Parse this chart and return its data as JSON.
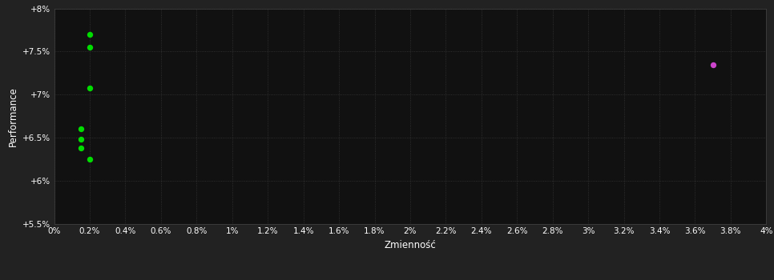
{
  "background_color": "#222222",
  "plot_bg_color": "#111111",
  "text_color": "#ffffff",
  "xlabel": "Zmienność",
  "ylabel": "Performance",
  "xlim": [
    0.0,
    0.04
  ],
  "ylim": [
    0.055,
    0.08
  ],
  "xticks": [
    0.0,
    0.002,
    0.004,
    0.006,
    0.008,
    0.01,
    0.012,
    0.014,
    0.016,
    0.018,
    0.02,
    0.022,
    0.024,
    0.026,
    0.028,
    0.03,
    0.032,
    0.034,
    0.036,
    0.038,
    0.04
  ],
  "yticks": [
    0.055,
    0.06,
    0.065,
    0.07,
    0.075,
    0.08
  ],
  "ytick_labels": [
    "+5.5%",
    "+6%",
    "+6.5%",
    "+7%",
    "+7.5%",
    "+8%"
  ],
  "xtick_labels": [
    "0%",
    "0.2%",
    "0.4%",
    "0.6%",
    "0.8%",
    "1%",
    "1.2%",
    "1.4%",
    "1.6%",
    "1.8%",
    "2%",
    "2.2%",
    "2.4%",
    "2.6%",
    "2.8%",
    "3%",
    "3.2%",
    "3.4%",
    "3.6%",
    "3.8%",
    "4%"
  ],
  "green_points_x": [
    0.002,
    0.002,
    0.002,
    0.0015,
    0.0015,
    0.0015,
    0.002
  ],
  "green_points_y": [
    0.077,
    0.0755,
    0.0708,
    0.066,
    0.0648,
    0.0638,
    0.0625
  ],
  "magenta_point_x": [
    0.037
  ],
  "magenta_point_y": [
    0.0735
  ],
  "green_color": "#00dd00",
  "magenta_color": "#cc44cc",
  "marker_size": 28
}
